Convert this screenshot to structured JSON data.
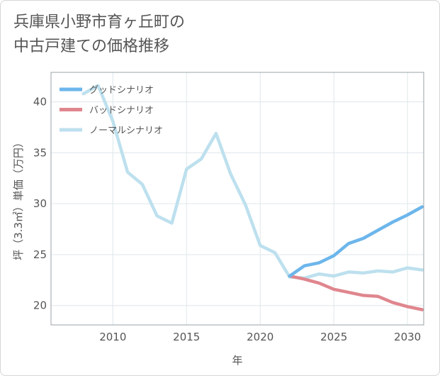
{
  "title_lines": [
    "兵庫県小野市育ヶ丘町の",
    "中古戸建ての価格推移"
  ],
  "chart_data": {
    "type": "line",
    "title": "兵庫県小野市育ヶ丘町の中古戸建ての価格推移",
    "xlabel": "年",
    "ylabel": "坪（3.3㎡）単価（万円）",
    "xlim": [
      2005.8,
      2031.1
    ],
    "ylim": [
      18.1,
      42.9
    ],
    "xticks": [
      2010,
      2015,
      2020,
      2025,
      2030
    ],
    "yticks": [
      20,
      25,
      30,
      35,
      40
    ],
    "grid": true,
    "legend_position": "top-left",
    "series": [
      {
        "name": "グッドシナリオ",
        "color": "#6cb6eb",
        "x": [
          2022,
          2023,
          2024,
          2025,
          2026,
          2027,
          2028,
          2029,
          2030,
          2031
        ],
        "values": [
          22.9,
          23.9,
          24.2,
          24.9,
          26.1,
          26.6,
          27.4,
          28.2,
          28.9,
          29.7
        ]
      },
      {
        "name": "バッドシナリオ",
        "color": "#e0868e",
        "x": [
          2022,
          2023,
          2024,
          2025,
          2026,
          2027,
          2028,
          2029,
          2030,
          2031
        ],
        "values": [
          22.9,
          22.6,
          22.2,
          21.6,
          21.3,
          21.0,
          20.9,
          20.3,
          19.9,
          19.6
        ]
      },
      {
        "name": "ノーマルシナリオ",
        "color": "#bde0ee",
        "x": [
          2008,
          2009,
          2010,
          2011,
          2012,
          2013,
          2014,
          2015,
          2016,
          2017,
          2018,
          2019,
          2020,
          2021,
          2022,
          2023,
          2024,
          2025,
          2026,
          2027,
          2028,
          2029,
          2030,
          2031
        ],
        "values": [
          40.8,
          41.6,
          38.1,
          33.1,
          31.9,
          28.8,
          28.1,
          33.4,
          34.4,
          36.9,
          32.9,
          29.9,
          25.9,
          25.2,
          22.8,
          22.7,
          23.1,
          22.9,
          23.3,
          23.2,
          23.4,
          23.3,
          23.7,
          23.5
        ]
      }
    ]
  }
}
